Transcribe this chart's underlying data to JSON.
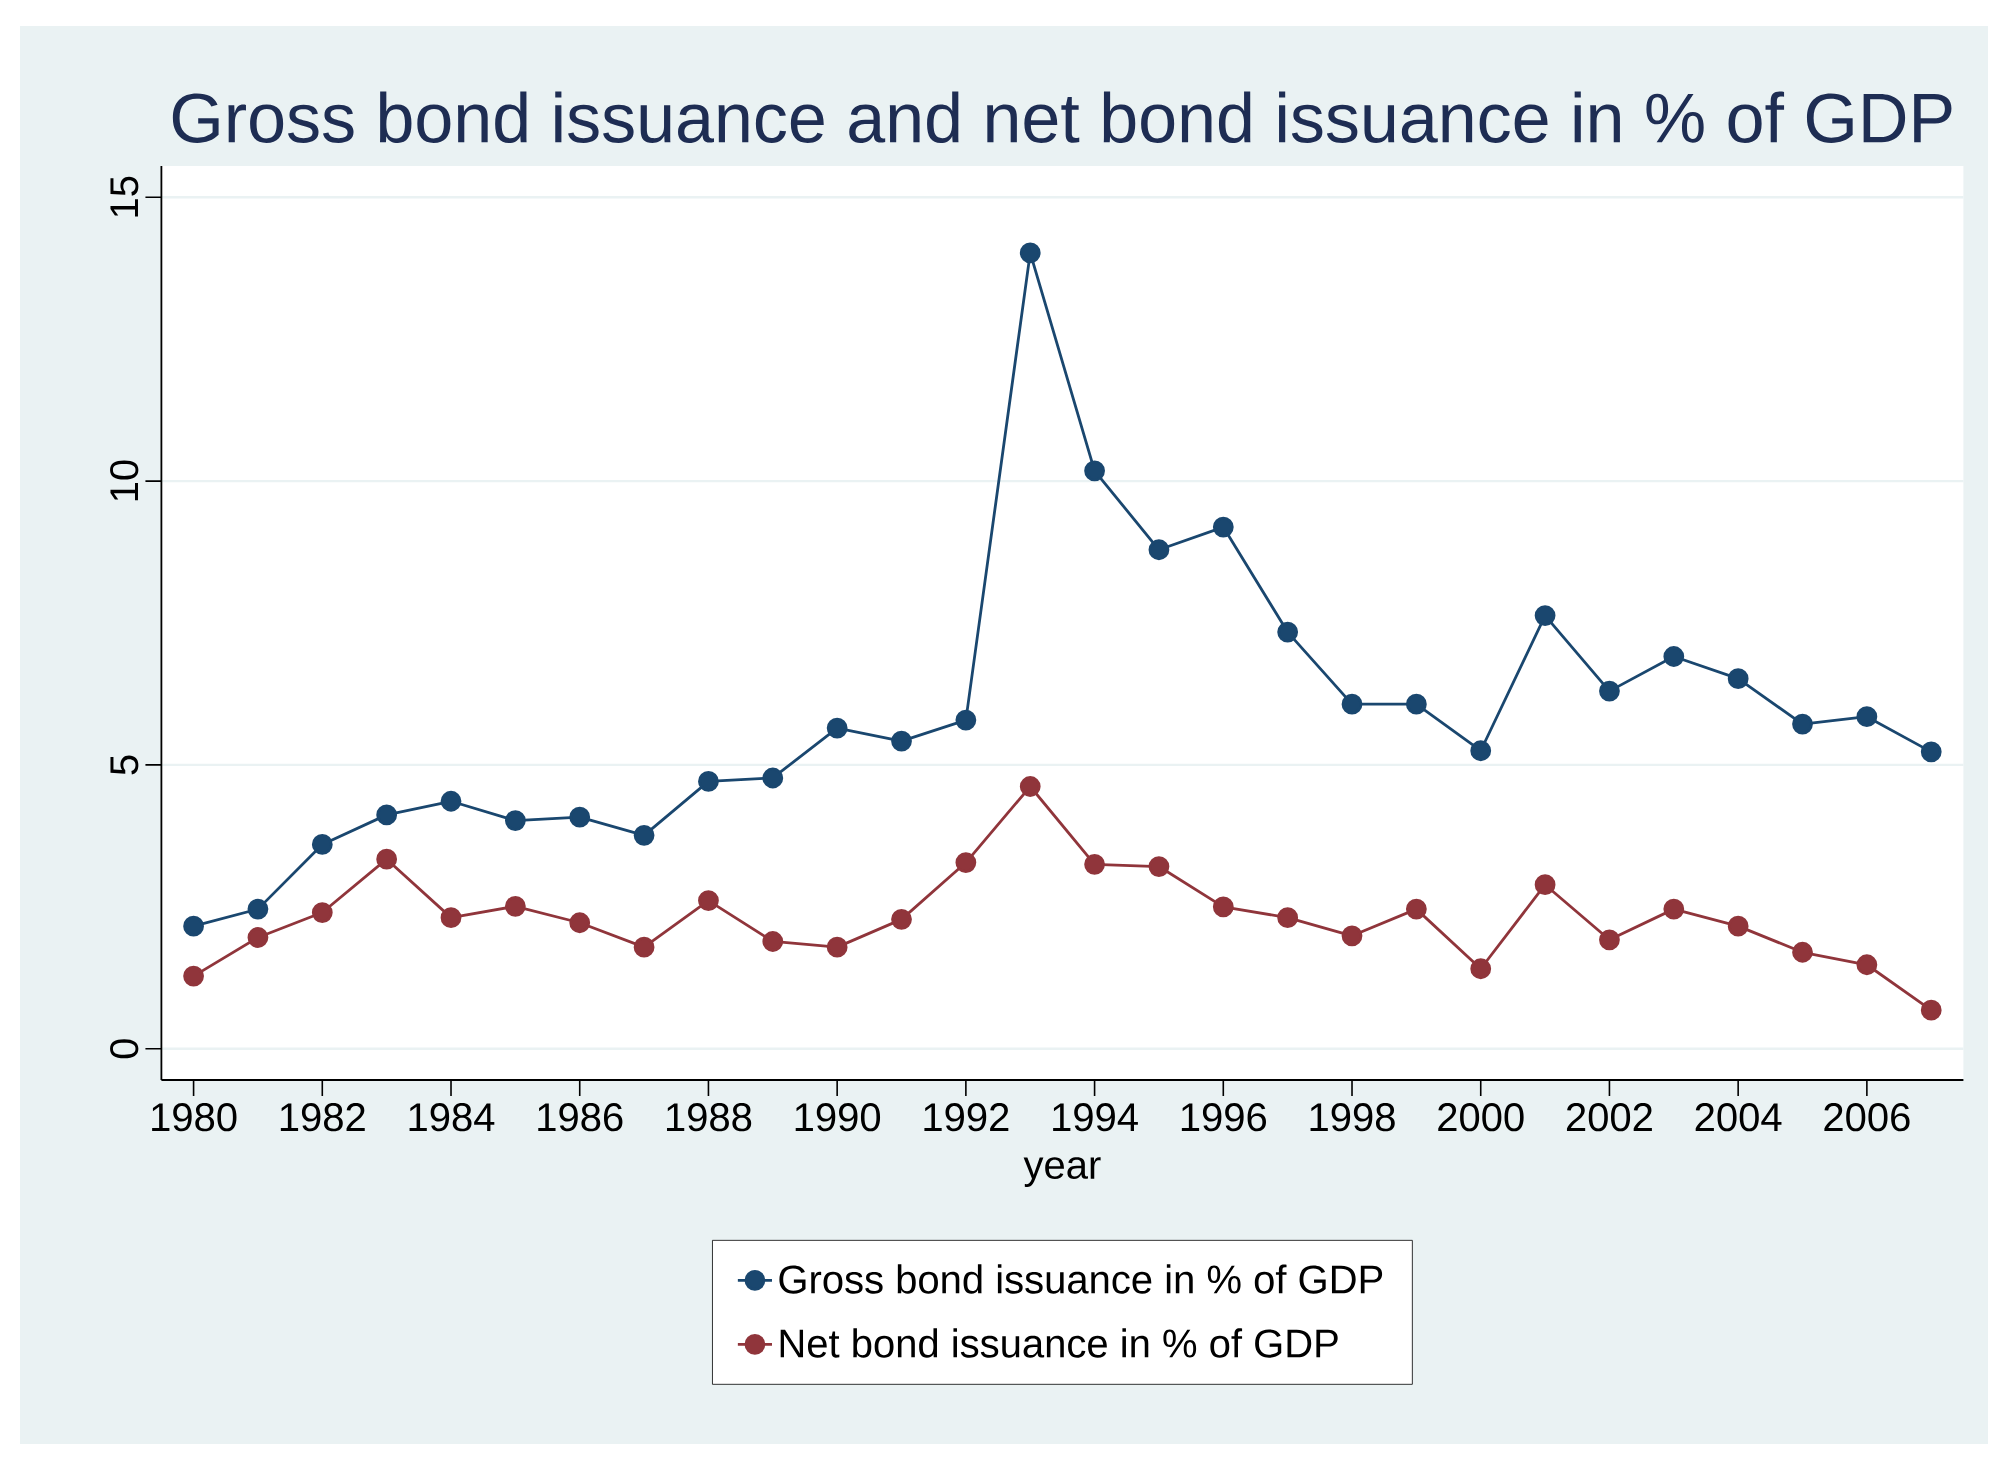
{
  "chart_data": {
    "type": "line",
    "title": "Gross bond issuance and net bond issuance in % of GDP",
    "xlabel": "year",
    "x": [
      1980,
      1981,
      1982,
      1983,
      1984,
      1985,
      1986,
      1987,
      1988,
      1989,
      1990,
      1991,
      1992,
      1993,
      1994,
      1995,
      1996,
      1997,
      1998,
      1999,
      2000,
      2001,
      2002,
      2003,
      2004,
      2005,
      2006,
      2007
    ],
    "series": [
      {
        "name": "Gross bond issuance in % of GDP",
        "color": "#1a476f",
        "values": [
          2.16,
          2.46,
          3.6,
          4.12,
          4.36,
          4.02,
          4.08,
          3.76,
          4.71,
          4.77,
          5.65,
          5.42,
          5.79,
          14.02,
          10.18,
          8.79,
          9.19,
          7.34,
          6.07,
          6.07,
          5.25,
          7.63,
          6.3,
          6.91,
          6.52,
          5.72,
          5.85,
          5.23
        ]
      },
      {
        "name": "Net bond issuance in % of GDP",
        "color": "#90353b",
        "values": [
          1.28,
          1.96,
          2.4,
          3.34,
          2.31,
          2.51,
          2.22,
          1.79,
          2.61,
          1.89,
          1.79,
          2.28,
          3.28,
          4.62,
          3.25,
          3.21,
          2.5,
          2.31,
          1.99,
          2.46,
          1.41,
          2.89,
          1.92,
          2.46,
          2.16,
          1.7,
          1.48,
          0.68
        ]
      }
    ],
    "xlim": [
      1979.5,
      2007.5
    ],
    "ylim": [
      -0.55,
      15.55
    ],
    "xticks": [
      1980,
      1982,
      1984,
      1986,
      1988,
      1990,
      1992,
      1994,
      1996,
      1998,
      2000,
      2002,
      2004,
      2006
    ],
    "yticks": [
      0,
      5,
      10,
      15
    ],
    "grid": "y",
    "legend": "bottom",
    "marker": "circle",
    "line_style": "solid"
  }
}
